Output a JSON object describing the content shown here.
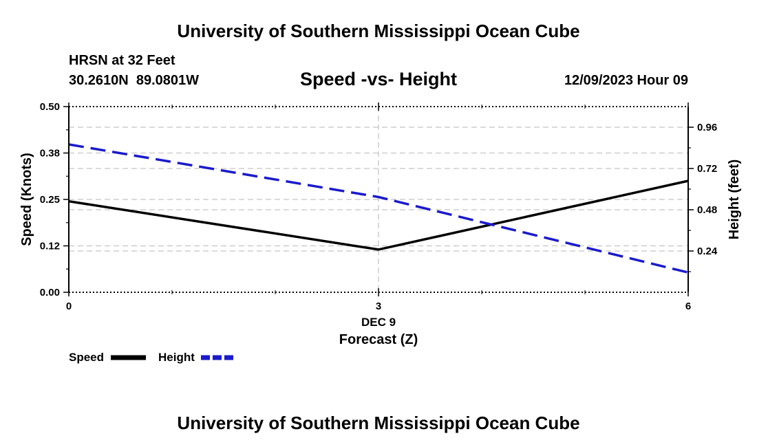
{
  "header": {
    "title": "University of Southern Mississippi Ocean Cube",
    "station": "HRSN at 32 Feet",
    "coords": "30.2610N  89.0801W",
    "subtitle": "Speed -vs- Height",
    "datetime": "12/09/2023 Hour 09"
  },
  "footer": {
    "title": "University of Southern Mississippi Ocean Cube"
  },
  "chart_data": {
    "type": "line",
    "title": "Speed -vs- Height",
    "xlabel": "Forecast (Z)",
    "x_date_label": "DEC 9",
    "x": [
      0,
      3,
      6
    ],
    "x_tick_labels": [
      "0",
      "3",
      "6"
    ],
    "xlim": [
      0,
      6
    ],
    "left_axis": {
      "label": "Speed (Knots)",
      "ylim": [
        0,
        0.5
      ],
      "ticks": [
        0.0,
        0.125,
        0.25,
        0.375,
        0.5
      ],
      "tick_labels": [
        "0.00",
        "0.12",
        "0.25",
        "0.38",
        "0.50"
      ]
    },
    "right_axis": {
      "label": "Height (feet)",
      "ylim": [
        0.0,
        1.08
      ],
      "ticks": [
        0.24,
        0.48,
        0.72,
        0.96
      ],
      "tick_labels": [
        "0.24",
        "0.48",
        "0.72",
        "0.96"
      ]
    },
    "series": [
      {
        "name": "Speed",
        "axis": "left",
        "color": "#000000",
        "dash": "solid",
        "values": [
          0.245,
          0.115,
          0.3
        ]
      },
      {
        "name": "Height",
        "axis": "right",
        "color": "#1a1acc",
        "dash": "dashed",
        "values": [
          0.86,
          0.554,
          0.115
        ]
      }
    ],
    "legend": [
      "Speed",
      "Height"
    ],
    "grid": true
  }
}
